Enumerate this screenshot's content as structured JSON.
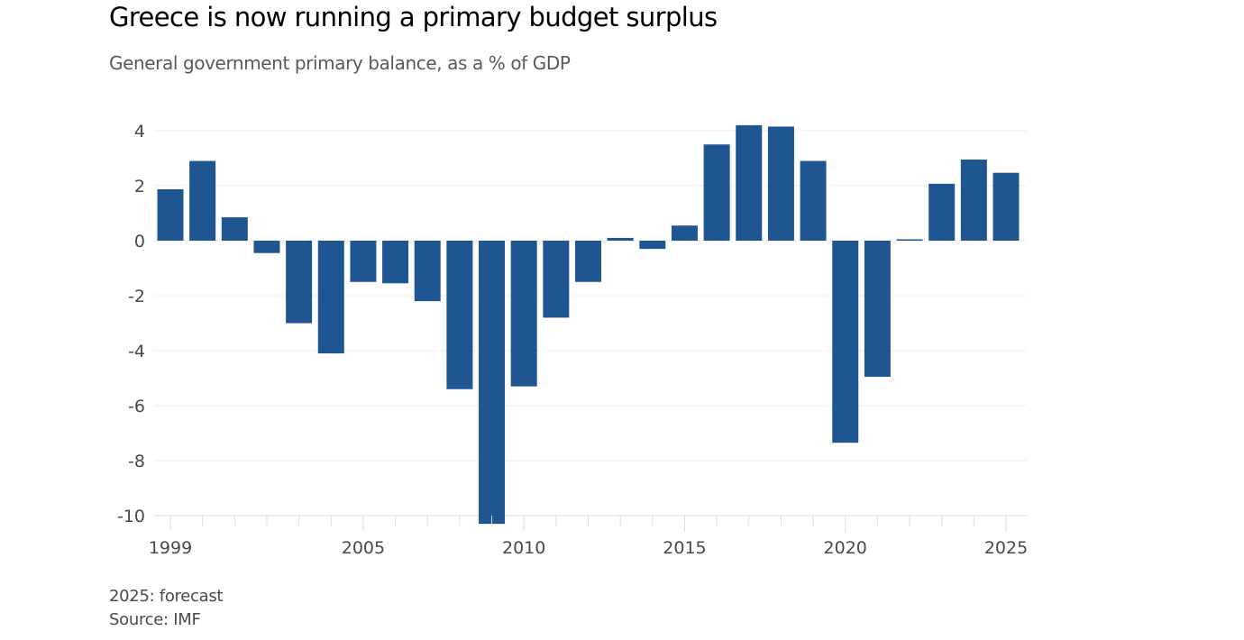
{
  "title": "Greece is now running a primary budget surplus",
  "subtitle": "General government primary balance, as a % of GDP",
  "footnote": "2025: forecast",
  "source": "Source: IMF",
  "chart_data": {
    "type": "bar",
    "title": "Greece is now running a primary budget surplus",
    "subtitle": "General government primary balance, as a % of GDP",
    "xlabel": "",
    "ylabel": "",
    "ylim": [
      -10,
      4.4
    ],
    "yticks": [
      4,
      2,
      0,
      -2,
      -4,
      -6,
      -8,
      -10
    ],
    "xticks": [
      1999,
      2005,
      2010,
      2015,
      2020,
      2025
    ],
    "grid": true,
    "color": "#1f5591",
    "categories": [
      1999,
      2000,
      2001,
      2002,
      2003,
      2004,
      2005,
      2006,
      2007,
      2008,
      2009,
      2010,
      2011,
      2012,
      2013,
      2014,
      2015,
      2016,
      2017,
      2018,
      2019,
      2020,
      2021,
      2022,
      2023,
      2024,
      2025
    ],
    "values": [
      1.87,
      2.9,
      0.85,
      -0.45,
      -3.0,
      -4.1,
      -1.5,
      -1.55,
      -2.2,
      -5.4,
      -10.3,
      -5.3,
      -2.8,
      -1.5,
      0.1,
      -0.3,
      0.55,
      3.5,
      4.2,
      4.15,
      2.9,
      -7.35,
      -4.95,
      0.05,
      2.07,
      2.95,
      2.47
    ],
    "annotations": [
      "2025: forecast"
    ]
  }
}
